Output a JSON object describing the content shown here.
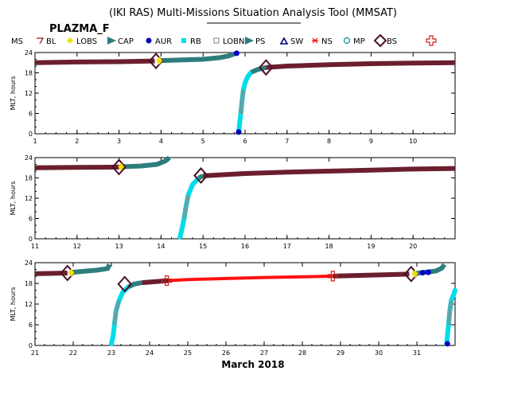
{
  "title": "(IKI RAS) Multi-Missions Situation Analysis Tool (MMSAT)",
  "subtitle": "PLAZMA_F",
  "legend": [
    {
      "label": "MS",
      "color": "#000000",
      "icon": "none"
    },
    {
      "label": "BL",
      "color": "#8b1a1a",
      "icon": "triangle-down-icon"
    },
    {
      "label": "LOBS",
      "color": "#f0e000",
      "icon": "diamond-icon"
    },
    {
      "label": "CAP",
      "color": "#2e7d7d",
      "icon": "flag-icon"
    },
    {
      "label": "AUR",
      "color": "#0000b0",
      "icon": "pentagon-icon"
    },
    {
      "label": "RB",
      "color": "#00e0e8",
      "icon": "square-icon"
    },
    {
      "label": "LOBN",
      "color": "#808080",
      "icon": "hollow-square-icon"
    },
    {
      "label": "PS",
      "color": "#2e7d7d",
      "icon": "flag-icon"
    },
    {
      "label": "SW",
      "color": "#000080",
      "icon": "triangle-up-icon"
    },
    {
      "label": "NS",
      "color": "#ff0000",
      "icon": "star-icon"
    },
    {
      "label": "MP",
      "color": "#009090",
      "icon": "circle-icon"
    },
    {
      "label": "BS",
      "color": "#4a1028",
      "icon": "diamond-outline-icon"
    },
    {
      "label": "",
      "color": "#d02020",
      "icon": "cross-outline-icon"
    }
  ],
  "chart_data": {
    "type": "scatter",
    "xlabel": "March 2018",
    "ylabel": "MLT, hours",
    "colors": {
      "sw": "#6b1f2e",
      "ms": "#2e7d7d",
      "rb": "#00dde8",
      "lobn": "#8a8a8a",
      "aur": "#0000c0",
      "ns": "#ff1010",
      "lobs": "#f0e000",
      "bs": "#4a1028",
      "mp": "#d02020"
    },
    "panels": [
      {
        "xlim": [
          1,
          11
        ],
        "ylim": [
          0,
          24
        ],
        "xticks": [
          "1",
          "2",
          "3",
          "4",
          "5",
          "6",
          "7",
          "8",
          "9",
          "10"
        ],
        "yticks": [
          "0",
          "6",
          "12",
          "18",
          "24"
        ],
        "segments": [
          {
            "region": "sw",
            "points": [
              [
                1.0,
                21.0
              ],
              [
                2.0,
                21.2
              ],
              [
                3.0,
                21.3
              ],
              [
                3.85,
                21.5
              ]
            ]
          },
          {
            "region": "ms",
            "points": [
              [
                3.95,
                21.6
              ],
              [
                4.5,
                21.8
              ],
              [
                5.0,
                22.0
              ],
              [
                5.4,
                22.5
              ],
              [
                5.6,
                23.0
              ],
              [
                5.75,
                23.6
              ]
            ]
          },
          {
            "region": "rb",
            "points": [
              [
                5.85,
                0.5
              ],
              [
                5.87,
                3.0
              ],
              [
                5.9,
                6.0
              ],
              [
                5.93,
                10.0
              ],
              [
                5.96,
                13.0
              ],
              [
                6.0,
                15.0
              ],
              [
                6.05,
                16.5
              ],
              [
                6.1,
                17.5
              ],
              [
                6.15,
                18.2
              ]
            ]
          },
          {
            "region": "ms",
            "points": [
              [
                6.15,
                18.2
              ],
              [
                6.3,
                19.0
              ],
              [
                6.5,
                19.6
              ]
            ]
          },
          {
            "region": "sw",
            "points": [
              [
                6.5,
                19.6
              ],
              [
                7.0,
                20.0
              ],
              [
                8.0,
                20.4
              ],
              [
                9.0,
                20.7
              ],
              [
                10.0,
                20.9
              ],
              [
                11.0,
                21.0
              ]
            ]
          }
        ],
        "markers": [
          {
            "type": "bs",
            "x": 3.88,
            "y": 21.5
          },
          {
            "type": "lobs",
            "x": 3.96,
            "y": 21.6
          },
          {
            "type": "aur",
            "x": 5.8,
            "y": 23.8
          },
          {
            "type": "aur",
            "x": 5.85,
            "y": 0.5
          },
          {
            "type": "bs",
            "x": 6.5,
            "y": 19.6
          }
        ]
      },
      {
        "xlim": [
          11,
          21
        ],
        "ylim": [
          0,
          24
        ],
        "xticks": [
          "11",
          "12",
          "13",
          "14",
          "15",
          "16",
          "17",
          "18",
          "19",
          "20"
        ],
        "yticks": [
          "0",
          "6",
          "12",
          "18",
          "24"
        ],
        "segments": [
          {
            "region": "sw",
            "points": [
              [
                11.0,
                21.0
              ],
              [
                12.0,
                21.1
              ],
              [
                13.0,
                21.2
              ]
            ]
          },
          {
            "region": "ms",
            "points": [
              [
                13.05,
                21.3
              ],
              [
                13.5,
                21.5
              ],
              [
                13.9,
                22.0
              ],
              [
                14.1,
                23.0
              ],
              [
                14.2,
                24.0
              ]
            ]
          },
          {
            "region": "rb",
            "points": [
              [
                14.45,
                0.5
              ],
              [
                14.5,
                3.0
              ],
              [
                14.55,
                6.0
              ],
              [
                14.6,
                10.0
              ],
              [
                14.65,
                13.0
              ],
              [
                14.75,
                16.0
              ],
              [
                14.9,
                18.0
              ]
            ]
          },
          {
            "region": "ms",
            "points": [
              [
                14.9,
                18.0
              ],
              [
                15.0,
                18.6
              ]
            ]
          },
          {
            "region": "sw",
            "points": [
              [
                15.0,
                18.6
              ],
              [
                16.0,
                19.3
              ],
              [
                17.0,
                19.7
              ],
              [
                18.0,
                20.0
              ],
              [
                19.0,
                20.3
              ],
              [
                20.0,
                20.6
              ],
              [
                21.0,
                20.8
              ]
            ]
          }
        ],
        "markers": [
          {
            "type": "bs",
            "x": 13.0,
            "y": 21.2
          },
          {
            "type": "lobs",
            "x": 13.05,
            "y": 21.3
          },
          {
            "type": "bs",
            "x": 14.95,
            "y": 18.7
          }
        ]
      },
      {
        "xlim": [
          21,
          32
        ],
        "ylim": [
          0,
          24
        ],
        "xticks": [
          "21",
          "22",
          "23",
          "24",
          "25",
          "26",
          "27",
          "28",
          "29",
          "30",
          "31"
        ],
        "yticks": [
          "0",
          "6",
          "12",
          "18",
          "24"
        ],
        "segments": [
          {
            "region": "sw",
            "points": [
              [
                21.0,
                20.8
              ],
              [
                21.5,
                20.9
              ],
              [
                21.85,
                21.0
              ]
            ]
          },
          {
            "region": "ms",
            "points": [
              [
                21.95,
                21.2
              ],
              [
                22.3,
                21.5
              ],
              [
                22.6,
                21.8
              ],
              [
                22.9,
                22.3
              ],
              [
                22.95,
                23.5
              ]
            ]
          },
          {
            "region": "rb",
            "points": [
              [
                23.0,
                0.5
              ],
              [
                23.05,
                3.0
              ],
              [
                23.08,
                6.0
              ],
              [
                23.12,
                10.0
              ],
              [
                23.2,
                13.0
              ],
              [
                23.3,
                15.5
              ],
              [
                23.45,
                17.0
              ]
            ]
          },
          {
            "region": "ms",
            "points": [
              [
                23.45,
                17.0
              ],
              [
                23.6,
                17.8
              ],
              [
                23.8,
                18.2
              ]
            ]
          },
          {
            "region": "sw",
            "points": [
              [
                23.8,
                18.2
              ],
              [
                24.5,
                18.8
              ]
            ]
          },
          {
            "region": "ns",
            "points": [
              [
                24.5,
                18.8
              ],
              [
                25.0,
                19.1
              ],
              [
                26.0,
                19.4
              ],
              [
                27.0,
                19.7
              ],
              [
                28.0,
                19.9
              ],
              [
                28.8,
                20.1
              ]
            ]
          },
          {
            "region": "sw",
            "points": [
              [
                28.8,
                20.1
              ],
              [
                29.5,
                20.3
              ],
              [
                30.5,
                20.6
              ],
              [
                30.8,
                20.7
              ]
            ]
          },
          {
            "region": "ms",
            "points": [
              [
                30.9,
                20.8
              ],
              [
                31.2,
                21.2
              ],
              [
                31.5,
                21.6
              ],
              [
                31.65,
                22.4
              ],
              [
                31.72,
                23.5
              ]
            ]
          },
          {
            "region": "rb",
            "points": [
              [
                31.78,
                0.5
              ],
              [
                31.8,
                3.0
              ],
              [
                31.83,
                6.0
              ],
              [
                31.86,
                10.0
              ],
              [
                31.9,
                13.0
              ],
              [
                31.97,
                15.0
              ],
              [
                32.0,
                16.0
              ]
            ]
          }
        ],
        "markers": [
          {
            "type": "bs",
            "x": 21.85,
            "y": 21.0
          },
          {
            "type": "lobs",
            "x": 21.95,
            "y": 21.1
          },
          {
            "type": "bs",
            "x": 23.35,
            "y": 17.8
          },
          {
            "type": "mp",
            "x": 24.45,
            "y": 18.8
          },
          {
            "type": "mp",
            "x": 28.8,
            "y": 20.1
          },
          {
            "type": "bs",
            "x": 30.85,
            "y": 20.7
          },
          {
            "type": "lobs",
            "x": 30.95,
            "y": 20.8
          },
          {
            "type": "aur",
            "x": 31.15,
            "y": 21.1
          },
          {
            "type": "aur",
            "x": 31.3,
            "y": 21.2
          },
          {
            "type": "aur",
            "x": 31.8,
            "y": 0.5
          }
        ]
      }
    ]
  }
}
